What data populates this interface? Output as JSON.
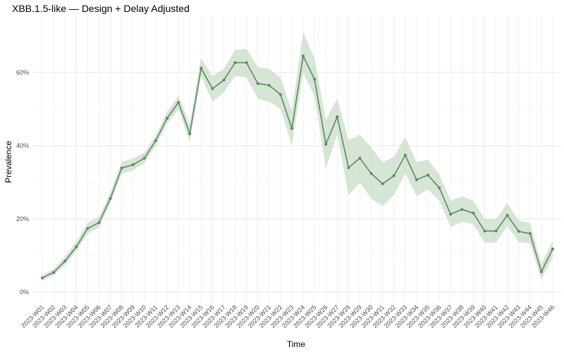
{
  "chart_data": {
    "type": "line",
    "title": "XBB.1.5-like — Design + Delay Adjusted",
    "xlabel": "Time",
    "ylabel": "Prevalence",
    "ylim": [
      0,
      0.7
    ],
    "y_ticks": [
      0,
      0.2,
      0.4,
      0.6
    ],
    "y_tick_labels": [
      "0%",
      "20%",
      "40%",
      "60%"
    ],
    "grid": true,
    "colors": {
      "line": "#5b8a5b",
      "band": "#c9dcc9"
    },
    "x": [
      "2023-W01",
      "2023-W02",
      "2023-W03",
      "2023-W04",
      "2023-W05",
      "2023-W06",
      "2023-W07",
      "2023-W08",
      "2023-W09",
      "2023-W10",
      "2023-W11",
      "2023-W12",
      "2023-W13",
      "2023-W14",
      "2023-W15",
      "2023-W16",
      "2023-W17",
      "2023-W18",
      "2023-W19",
      "2023-W20",
      "2023-W21",
      "2023-W22",
      "2023-W23",
      "2023-W24",
      "2023-W25",
      "2023-W26",
      "2023-W27",
      "2023-W28",
      "2023-W29",
      "2023-W30",
      "2023-W31",
      "2023-W32",
      "2023-W33",
      "2023-W34",
      "2023-W35",
      "2023-W36",
      "2023-W37",
      "2023-W38",
      "2023-W39",
      "2023-W40",
      "2023-W41",
      "2023-W42",
      "2023-W43",
      "2023-W44",
      "2023-W45",
      "2023-W46"
    ],
    "series": [
      {
        "values": [
          0.039,
          0.054,
          0.085,
          0.124,
          0.174,
          0.19,
          0.256,
          0.339,
          0.348,
          0.366,
          0.414,
          0.475,
          0.518,
          0.433,
          0.612,
          0.556,
          0.579,
          0.627,
          0.627,
          0.57,
          0.565,
          0.54,
          0.447,
          0.645,
          0.582,
          0.404,
          0.479,
          0.34,
          0.366,
          0.324,
          0.296,
          0.318,
          0.374,
          0.307,
          0.32,
          0.285,
          0.213,
          0.226,
          0.216,
          0.167,
          0.167,
          0.21,
          0.166,
          0.16,
          0.056,
          0.118
        ],
        "lower": [
          0.032,
          0.046,
          0.075,
          0.112,
          0.16,
          0.177,
          0.242,
          0.323,
          0.333,
          0.352,
          0.4,
          0.46,
          0.5,
          0.41,
          0.59,
          0.52,
          0.545,
          0.59,
          0.587,
          0.528,
          0.52,
          0.5,
          0.4,
          0.6,
          0.535,
          0.338,
          0.43,
          0.265,
          0.3,
          0.255,
          0.235,
          0.265,
          0.325,
          0.262,
          0.28,
          0.25,
          0.178,
          0.192,
          0.185,
          0.135,
          0.135,
          0.18,
          0.137,
          0.133,
          0.035,
          0.095
        ],
        "upper": [
          0.047,
          0.063,
          0.097,
          0.138,
          0.19,
          0.205,
          0.272,
          0.356,
          0.365,
          0.381,
          0.429,
          0.492,
          0.536,
          0.458,
          0.64,
          0.59,
          0.61,
          0.662,
          0.665,
          0.615,
          0.61,
          0.585,
          0.495,
          0.71,
          0.64,
          0.47,
          0.53,
          0.415,
          0.43,
          0.395,
          0.355,
          0.37,
          0.424,
          0.355,
          0.362,
          0.322,
          0.25,
          0.262,
          0.25,
          0.2,
          0.2,
          0.243,
          0.196,
          0.189,
          0.078,
          0.14
        ]
      }
    ]
  }
}
